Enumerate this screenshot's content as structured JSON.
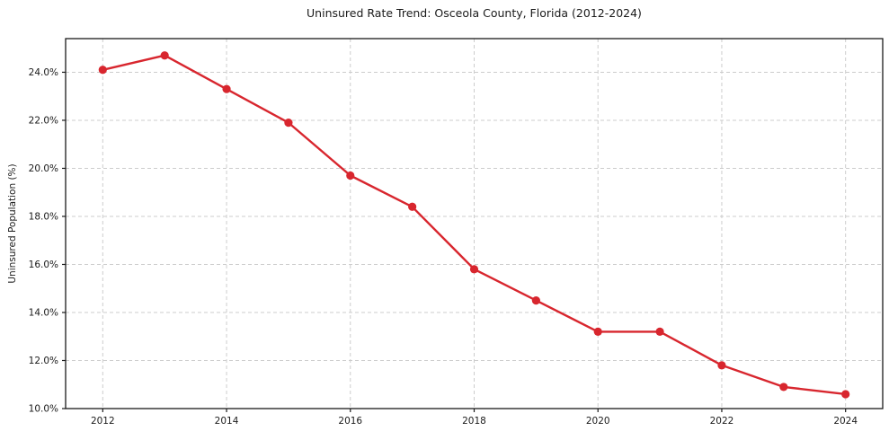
{
  "chart_data": {
    "type": "line",
    "title": "Uninsured Rate Trend: Osceola County, Florida (2012-2024)",
    "xlabel": "",
    "ylabel": "Uninsured Population (%)",
    "x": [
      2012,
      2013,
      2014,
      2015,
      2016,
      2017,
      2018,
      2019,
      2020,
      2021,
      2022,
      2023,
      2024
    ],
    "values": [
      24.1,
      24.7,
      23.3,
      21.9,
      19.7,
      18.4,
      15.8,
      14.5,
      13.2,
      13.2,
      11.8,
      10.9,
      10.6
    ],
    "xlim": [
      2011.4,
      2024.6
    ],
    "ylim": [
      10.0,
      25.4
    ],
    "xticks": [
      2012,
      2014,
      2016,
      2018,
      2020,
      2022,
      2024
    ],
    "xtick_labels": [
      "2012",
      "2014",
      "2016",
      "2018",
      "2020",
      "2022",
      "2024"
    ],
    "yticks": [
      10,
      12,
      14,
      16,
      18,
      20,
      22,
      24
    ],
    "ytick_labels": [
      "10.0%",
      "12.0%",
      "14.0%",
      "16.0%",
      "18.0%",
      "20.0%",
      "22.0%",
      "24.0%"
    ],
    "grid": "dashed",
    "legend": "none",
    "line_color": "#d8262e",
    "marker": "circle",
    "grid_color": "#cccccc",
    "axis_color": "#1a1a1a",
    "text_color": "#1a1a1a",
    "background": "#ffffff"
  }
}
